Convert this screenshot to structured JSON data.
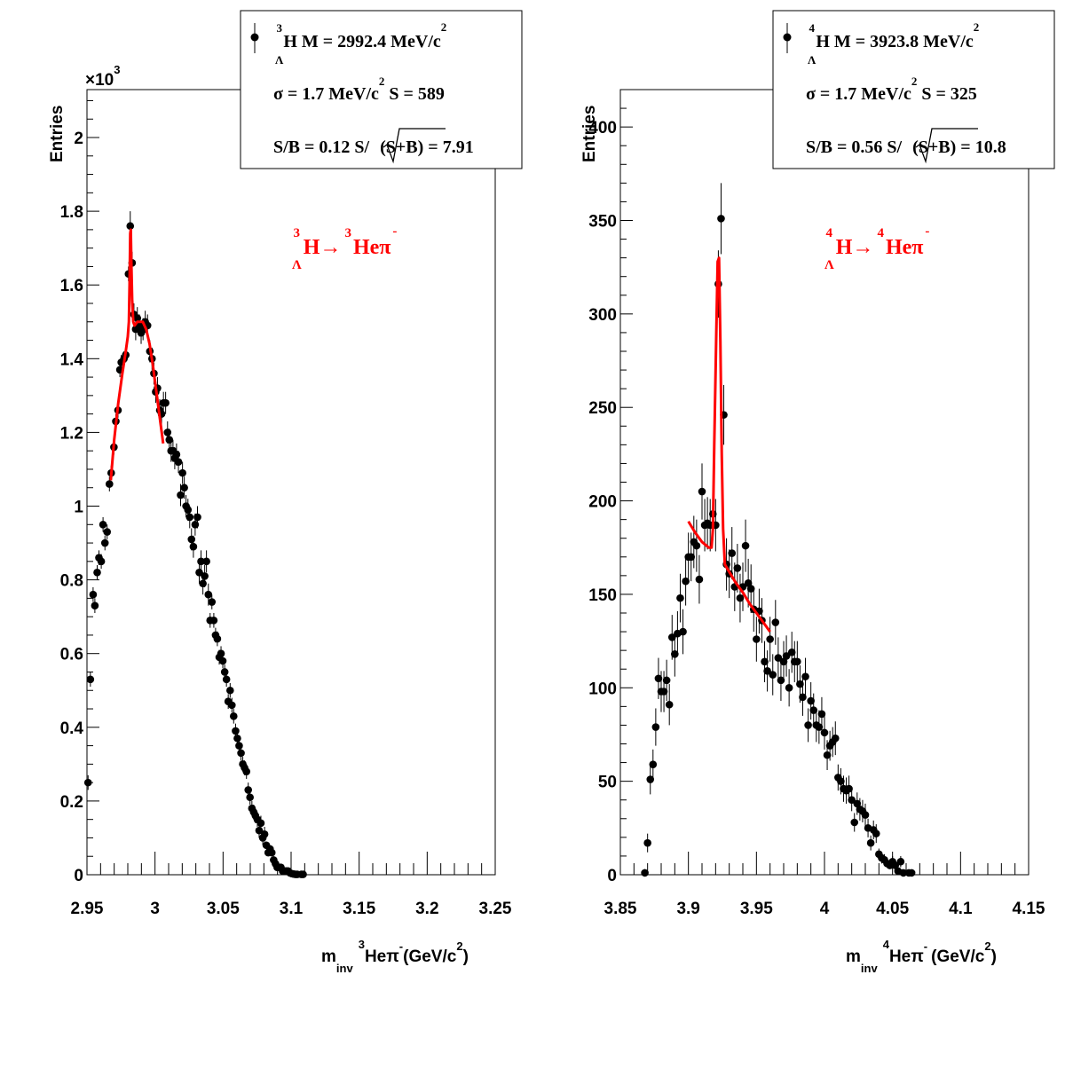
{
  "colors": {
    "data": "#000000",
    "fit": "#ff0000",
    "background": "#ffffff"
  },
  "chart_data": [
    {
      "type": "scatter",
      "ylabel": "Entries",
      "xlabel": {
        "m": "m",
        "inv": "inv",
        "sup3": "3",
        "he": "He",
        "pi": "π",
        "minus": "-",
        "unit": "(GeV/c",
        "sup2": "2",
        "close": ")"
      },
      "xlim": [
        2.95,
        3.25
      ],
      "ylim": [
        0,
        2.13
      ],
      "y_scale_label": {
        "times": "×10",
        "exp": "3"
      },
      "xticks": [
        "2.95",
        "3",
        "3.05",
        "3.1",
        "3.15",
        "3.2",
        "3.25"
      ],
      "yticks": [
        "0",
        "0.2",
        "0.4",
        "0.6",
        "0.8",
        "1",
        "1.2",
        "1.4",
        "1.6",
        "1.8",
        "2"
      ],
      "legend": {
        "position": "top-right",
        "line1": {
          "sup": "3",
          "sub": "Λ",
          "text": "H M = 2992.4 MeV/c",
          "sup2": "2"
        },
        "line2": {
          "text_a": "σ = 1.7 MeV/c",
          "sup2": "2",
          "text_b": " S =  589"
        },
        "line3": {
          "text_a": "S/B = 0.12  S/",
          "root": "(S+B)",
          "text_b": " = 7.91"
        }
      },
      "annotation": {
        "sup_a": "3",
        "sub": "Λ",
        "text_a": "H→",
        "sup_b": "3",
        "text_b": "Heπ",
        "sup_c": "-"
      },
      "points": [
        [
          2.9508,
          0.25,
          0.02
        ],
        [
          2.9525,
          0.53,
          0.02
        ],
        [
          2.9545,
          0.76,
          0.02
        ],
        [
          2.9558,
          0.73,
          0.02
        ],
        [
          2.9575,
          0.82,
          0.02
        ],
        [
          2.9588,
          0.86,
          0.02
        ],
        [
          2.9605,
          0.85,
          0.02
        ],
        [
          2.9618,
          0.95,
          0.02
        ],
        [
          2.9632,
          0.9,
          0.02
        ],
        [
          2.9648,
          0.93,
          0.02
        ],
        [
          2.9665,
          1.06,
          0.02
        ],
        [
          2.9678,
          1.09,
          0.02
        ],
        [
          2.9698,
          1.16,
          0.02
        ],
        [
          2.9712,
          1.23,
          0.02
        ],
        [
          2.9728,
          1.26,
          0.02
        ],
        [
          2.9742,
          1.37,
          0.02
        ],
        [
          2.9752,
          1.39,
          0.02
        ],
        [
          2.9772,
          1.4,
          0.02
        ],
        [
          2.9785,
          1.41,
          0.02
        ],
        [
          2.9805,
          1.63,
          0.02
        ],
        [
          2.9818,
          1.76,
          0.04
        ],
        [
          2.9832,
          1.66,
          0.03
        ],
        [
          2.9845,
          1.52,
          0.03
        ],
        [
          2.9858,
          1.48,
          0.03
        ],
        [
          2.987,
          1.51,
          0.03
        ],
        [
          2.9885,
          1.49,
          0.03
        ],
        [
          2.9898,
          1.47,
          0.03
        ],
        [
          2.9912,
          1.48,
          0.03
        ],
        [
          2.9928,
          1.5,
          0.03
        ],
        [
          2.9945,
          1.49,
          0.03
        ],
        [
          2.9962,
          1.42,
          0.03
        ],
        [
          2.9978,
          1.4,
          0.03
        ],
        [
          2.9992,
          1.36,
          0.03
        ],
        [
          3.0005,
          1.31,
          0.03
        ],
        [
          3.0018,
          1.32,
          0.03
        ],
        [
          3.0035,
          1.26,
          0.03
        ],
        [
          3.0048,
          1.25,
          0.03
        ],
        [
          3.0062,
          1.28,
          0.03
        ],
        [
          3.0078,
          1.28,
          0.03
        ],
        [
          3.0092,
          1.2,
          0.03
        ],
        [
          3.0105,
          1.18,
          0.03
        ],
        [
          3.0118,
          1.15,
          0.03
        ],
        [
          3.0132,
          1.15,
          0.03
        ],
        [
          3.0145,
          1.13,
          0.03
        ],
        [
          3.0158,
          1.14,
          0.03
        ],
        [
          3.0172,
          1.12,
          0.03
        ],
        [
          3.0188,
          1.03,
          0.03
        ],
        [
          3.0202,
          1.09,
          0.03
        ],
        [
          3.0215,
          1.05,
          0.03
        ],
        [
          3.0228,
          1.0,
          0.03
        ],
        [
          3.0242,
          0.99,
          0.03
        ],
        [
          3.0255,
          0.97,
          0.03
        ],
        [
          3.0268,
          0.91,
          0.03
        ],
        [
          3.0282,
          0.89,
          0.03
        ],
        [
          3.0295,
          0.95,
          0.03
        ],
        [
          3.0312,
          0.97,
          0.03
        ],
        [
          3.0325,
          0.82,
          0.03
        ],
        [
          3.0338,
          0.85,
          0.03
        ],
        [
          3.0352,
          0.79,
          0.03
        ],
        [
          3.0365,
          0.81,
          0.03
        ],
        [
          3.0378,
          0.85,
          0.03
        ],
        [
          3.0392,
          0.76,
          0.03
        ],
        [
          3.0405,
          0.69,
          0.02
        ],
        [
          3.0418,
          0.74,
          0.02
        ],
        [
          3.0432,
          0.69,
          0.02
        ],
        [
          3.0445,
          0.65,
          0.02
        ],
        [
          3.0458,
          0.64,
          0.02
        ],
        [
          3.0472,
          0.59,
          0.02
        ],
        [
          3.0485,
          0.6,
          0.02
        ],
        [
          3.0498,
          0.58,
          0.02
        ],
        [
          3.0512,
          0.55,
          0.02
        ],
        [
          3.0525,
          0.53,
          0.02
        ],
        [
          3.0538,
          0.47,
          0.02
        ],
        [
          3.0552,
          0.5,
          0.02
        ],
        [
          3.0565,
          0.46,
          0.02
        ],
        [
          3.0578,
          0.43,
          0.02
        ],
        [
          3.0592,
          0.39,
          0.02
        ],
        [
          3.0605,
          0.37,
          0.02
        ],
        [
          3.0618,
          0.35,
          0.02
        ],
        [
          3.0632,
          0.33,
          0.02
        ],
        [
          3.0645,
          0.3,
          0.02
        ],
        [
          3.0658,
          0.29,
          0.02
        ],
        [
          3.0672,
          0.28,
          0.02
        ],
        [
          3.0685,
          0.23,
          0.02
        ],
        [
          3.0698,
          0.21,
          0.02
        ],
        [
          3.0712,
          0.18,
          0.02
        ],
        [
          3.0725,
          0.17,
          0.02
        ],
        [
          3.0738,
          0.16,
          0.02
        ],
        [
          3.0752,
          0.15,
          0.02
        ],
        [
          3.0765,
          0.12,
          0.02
        ],
        [
          3.0778,
          0.14,
          0.02
        ],
        [
          3.0792,
          0.1,
          0.02
        ],
        [
          3.0805,
          0.11,
          0.02
        ],
        [
          3.0818,
          0.08,
          0.01
        ],
        [
          3.0832,
          0.06,
          0.01
        ],
        [
          3.0845,
          0.07,
          0.01
        ],
        [
          3.0858,
          0.06,
          0.01
        ],
        [
          3.0872,
          0.04,
          0.01
        ],
        [
          3.0885,
          0.03,
          0.01
        ],
        [
          3.0898,
          0.02,
          0.01
        ],
        [
          3.0912,
          0.02,
          0.01
        ],
        [
          3.0925,
          0.02,
          0.01
        ],
        [
          3.0938,
          0.01,
          0.01
        ],
        [
          3.0952,
          0.01,
          0.01
        ],
        [
          3.0965,
          0.01,
          0.01
        ],
        [
          3.0978,
          0.01,
          0.01
        ],
        [
          3.0992,
          0.005,
          0.005
        ],
        [
          3.1005,
          0.003,
          0.003
        ],
        [
          3.1018,
          0.002,
          0.002
        ],
        [
          3.1032,
          0.001,
          0.001
        ],
        [
          3.1045,
          0.001,
          0.001
        ],
        [
          3.1075,
          0.001,
          0.001
        ],
        [
          3.1088,
          0.001,
          0.001
        ]
      ],
      "fit": [
        [
          2.9675,
          1.07
        ],
        [
          2.97,
          1.18
        ],
        [
          2.973,
          1.28
        ],
        [
          2.976,
          1.36
        ],
        [
          2.9785,
          1.42
        ],
        [
          2.98,
          1.46
        ],
        [
          2.9808,
          1.5
        ],
        [
          2.9813,
          1.6
        ],
        [
          2.9818,
          1.74
        ],
        [
          2.9822,
          1.75
        ],
        [
          2.9826,
          1.66
        ],
        [
          2.9832,
          1.56
        ],
        [
          2.984,
          1.5
        ],
        [
          2.985,
          1.49
        ],
        [
          2.987,
          1.5
        ],
        [
          2.989,
          1.5
        ],
        [
          2.991,
          1.5
        ],
        [
          2.9935,
          1.48
        ],
        [
          2.996,
          1.44
        ],
        [
          2.9985,
          1.38
        ],
        [
          3.001,
          1.31
        ],
        [
          3.0035,
          1.24
        ],
        [
          3.006,
          1.17
        ]
      ]
    },
    {
      "type": "scatter",
      "ylabel": "Entries",
      "xlabel": {
        "m": "m",
        "inv": "inv",
        "sup3": "4",
        "he": "He",
        "pi": "π",
        "minus": "-",
        "unit": "(GeV/c",
        "sup2": "2",
        "close": ")"
      },
      "xlim": [
        3.85,
        4.15
      ],
      "ylim": [
        0,
        420
      ],
      "xticks": [
        "3.85",
        "3.9",
        "3.95",
        "4",
        "4.05",
        "4.1",
        "4.15"
      ],
      "yticks": [
        "0",
        "50",
        "100",
        "150",
        "200",
        "250",
        "300",
        "350",
        "400"
      ],
      "legend": {
        "position": "top-right",
        "line1": {
          "sup": "4",
          "sub": "Λ",
          "text": "H M = 3923.8 MeV/c",
          "sup2": "2"
        },
        "line2": {
          "text_a": "σ = 1.7 MeV/c",
          "sup2": "2",
          "text_b": " S =  325"
        },
        "line3": {
          "text_a": "S/B = 0.56  S/",
          "root": "(S+B)",
          "text_b": " = 10.8"
        }
      },
      "annotation": {
        "sup_a": "4",
        "sub": "Λ",
        "text_a": "H→",
        "sup_b": "4",
        "text_b": "Heπ",
        "sup_c": "-"
      },
      "points": [
        [
          3.868,
          1,
          2
        ],
        [
          3.87,
          17,
          5
        ],
        [
          3.872,
          51,
          8
        ],
        [
          3.874,
          59,
          8
        ],
        [
          3.876,
          79,
          10
        ],
        [
          3.878,
          105,
          11
        ],
        [
          3.88,
          98,
          11
        ],
        [
          3.882,
          98,
          11
        ],
        [
          3.884,
          104,
          11
        ],
        [
          3.886,
          91,
          11
        ],
        [
          3.888,
          127,
          12
        ],
        [
          3.89,
          118,
          12
        ],
        [
          3.892,
          129,
          12
        ],
        [
          3.894,
          148,
          13
        ],
        [
          3.896,
          130,
          12
        ],
        [
          3.898,
          157,
          13
        ],
        [
          3.9,
          170,
          13
        ],
        [
          3.902,
          170,
          13
        ],
        [
          3.904,
          178,
          14
        ],
        [
          3.906,
          176,
          14
        ],
        [
          3.908,
          158,
          13
        ],
        [
          3.91,
          205,
          15
        ],
        [
          3.912,
          187,
          14
        ],
        [
          3.914,
          188,
          14
        ],
        [
          3.916,
          187,
          14
        ],
        [
          3.918,
          193,
          14
        ],
        [
          3.92,
          187,
          14
        ],
        [
          3.922,
          316,
          18
        ],
        [
          3.924,
          351,
          19
        ],
        [
          3.926,
          246,
          16
        ],
        [
          3.928,
          166,
          14
        ],
        [
          3.93,
          161,
          13
        ],
        [
          3.932,
          172,
          14
        ],
        [
          3.934,
          154,
          13
        ],
        [
          3.936,
          164,
          13
        ],
        [
          3.938,
          148,
          13
        ],
        [
          3.94,
          154,
          13
        ],
        [
          3.942,
          176,
          14
        ],
        [
          3.944,
          156,
          13
        ],
        [
          3.946,
          153,
          13
        ],
        [
          3.948,
          142,
          12
        ],
        [
          3.95,
          126,
          12
        ],
        [
          3.952,
          141,
          12
        ],
        [
          3.954,
          136,
          12
        ],
        [
          3.956,
          114,
          11
        ],
        [
          3.958,
          109,
          11
        ],
        [
          3.96,
          126,
          12
        ],
        [
          3.962,
          107,
          11
        ],
        [
          3.964,
          135,
          12
        ],
        [
          3.966,
          116,
          11
        ],
        [
          3.968,
          104,
          11
        ],
        [
          3.97,
          114,
          11
        ],
        [
          3.972,
          117,
          11
        ],
        [
          3.974,
          100,
          10
        ],
        [
          3.976,
          119,
          11
        ],
        [
          3.978,
          114,
          11
        ],
        [
          3.98,
          114,
          11
        ],
        [
          3.982,
          102,
          10
        ],
        [
          3.984,
          95,
          10
        ],
        [
          3.986,
          106,
          10
        ],
        [
          3.988,
          80,
          9
        ],
        [
          3.99,
          93,
          10
        ],
        [
          3.992,
          88,
          9
        ],
        [
          3.994,
          80,
          9
        ],
        [
          3.996,
          79,
          9
        ],
        [
          3.998,
          86,
          9
        ],
        [
          4.0,
          76,
          9
        ],
        [
          4.002,
          64,
          8
        ],
        [
          4.004,
          69,
          8
        ],
        [
          4.006,
          71,
          8
        ],
        [
          4.008,
          73,
          9
        ],
        [
          4.01,
          52,
          7
        ],
        [
          4.012,
          50,
          7
        ],
        [
          4.014,
          46,
          7
        ],
        [
          4.016,
          45,
          7
        ],
        [
          4.018,
          46,
          7
        ],
        [
          4.02,
          40,
          6
        ],
        [
          4.022,
          28,
          5
        ],
        [
          4.024,
          38,
          6
        ],
        [
          4.026,
          35,
          6
        ],
        [
          4.028,
          34,
          6
        ],
        [
          4.03,
          32,
          6
        ],
        [
          4.032,
          25,
          5
        ],
        [
          4.034,
          17,
          4
        ],
        [
          4.036,
          24,
          5
        ],
        [
          4.038,
          22,
          5
        ],
        [
          4.04,
          11,
          3
        ],
        [
          4.042,
          9,
          3
        ],
        [
          4.044,
          8,
          3
        ],
        [
          4.046,
          6,
          2
        ],
        [
          4.048,
          5,
          2
        ],
        [
          4.05,
          7,
          3
        ],
        [
          4.052,
          5,
          2
        ],
        [
          4.054,
          2,
          1
        ],
        [
          4.056,
          7,
          3
        ],
        [
          4.058,
          1,
          1
        ],
        [
          4.062,
          1,
          1
        ],
        [
          4.064,
          1,
          1
        ]
      ],
      "fit": [
        [
          3.9,
          189
        ],
        [
          3.905,
          183
        ],
        [
          3.91,
          178
        ],
        [
          3.915,
          175
        ],
        [
          3.917,
          175
        ],
        [
          3.918,
          185
        ],
        [
          3.919,
          230
        ],
        [
          3.9205,
          290
        ],
        [
          3.9215,
          328
        ],
        [
          3.9225,
          330
        ],
        [
          3.9235,
          285
        ],
        [
          3.9245,
          225
        ],
        [
          3.9255,
          185
        ],
        [
          3.9268,
          166
        ],
        [
          3.93,
          162
        ],
        [
          3.935,
          156
        ],
        [
          3.94,
          151
        ],
        [
          3.945,
          145
        ],
        [
          3.95,
          140
        ],
        [
          3.955,
          135
        ],
        [
          3.96,
          130
        ]
      ]
    }
  ]
}
